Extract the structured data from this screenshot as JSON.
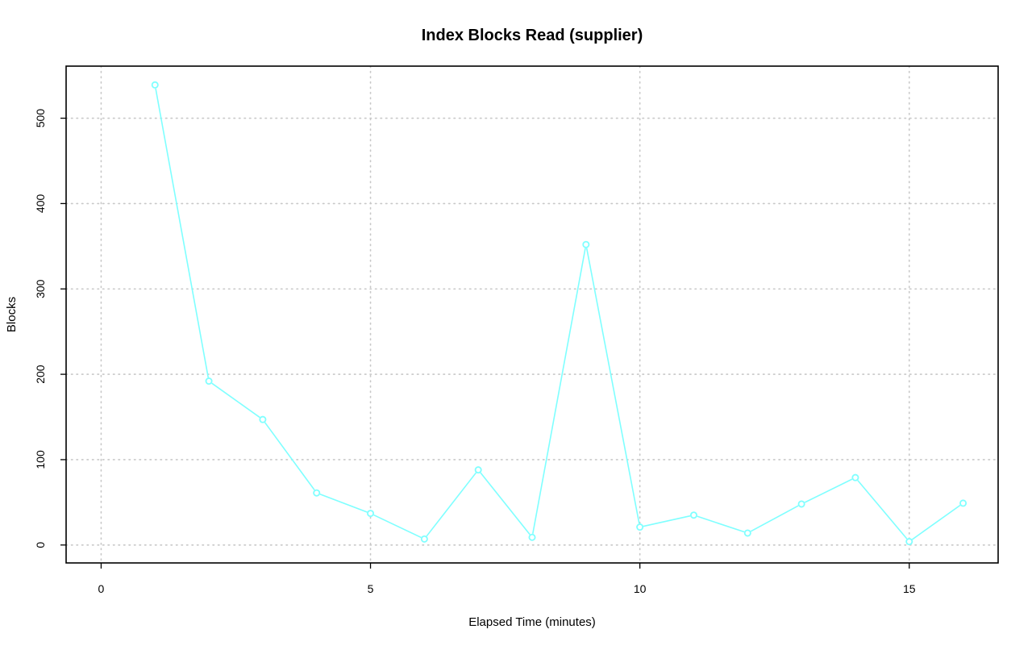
{
  "chart_data": {
    "type": "line",
    "title": "Index Blocks Read (supplier)",
    "xlabel": "Elapsed Time (minutes)",
    "ylabel": "Blocks",
    "xlim": [
      -0.65,
      16.65
    ],
    "ylim": [
      -21,
      561
    ],
    "x_ticks": [
      0,
      5,
      10,
      15
    ],
    "y_ticks": [
      0,
      100,
      200,
      300,
      400,
      500
    ],
    "grid": true,
    "legend": "none",
    "series": [
      {
        "color": "#7fffff",
        "x": [
          1,
          2,
          3,
          4,
          5,
          6,
          7,
          8,
          9,
          10,
          11,
          12,
          13,
          14,
          15,
          16
        ],
        "y": [
          539,
          192,
          147,
          61,
          37,
          7,
          88,
          9,
          352,
          21,
          35,
          14,
          48,
          79,
          4,
          49
        ]
      }
    ]
  }
}
